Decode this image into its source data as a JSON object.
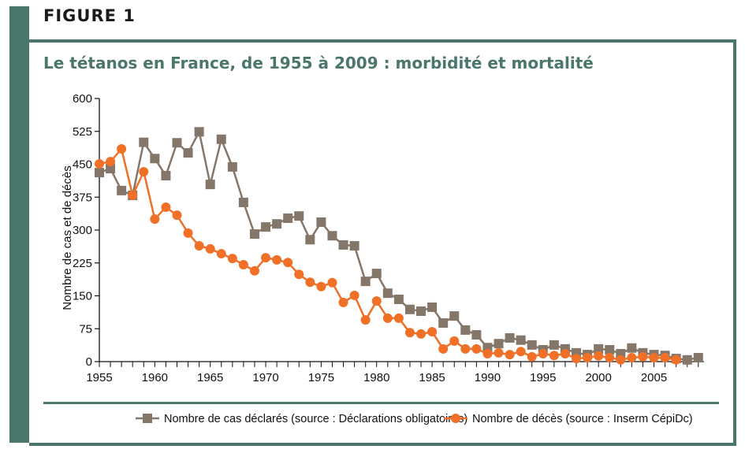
{
  "figure_label": "FIGURE 1",
  "chart_data": {
    "type": "line",
    "title": "Le tétanos en France, de 1955 à 2009 : morbidité et mortalité",
    "xlabel": "",
    "ylabel": "Nombre de cas et de décès",
    "xlim": [
      1955,
      2009
    ],
    "ylim": [
      0,
      600
    ],
    "xticks": [
      1955,
      1960,
      1965,
      1970,
      1975,
      1980,
      1985,
      1990,
      1995,
      2000,
      2005
    ],
    "yticks": [
      0,
      75,
      150,
      225,
      300,
      375,
      450,
      525,
      600
    ],
    "grid": false,
    "legend_position": "bottom",
    "series": [
      {
        "name": "Nombre de cas déclarés (source : Déclarations obligatoires)",
        "color": "#85766a",
        "marker": "square",
        "x": [
          1955,
          1956,
          1957,
          1958,
          1959,
          1960,
          1961,
          1962,
          1963,
          1964,
          1965,
          1966,
          1967,
          1968,
          1969,
          1970,
          1971,
          1972,
          1973,
          1974,
          1975,
          1976,
          1977,
          1978,
          1979,
          1980,
          1981,
          1982,
          1983,
          1984,
          1985,
          1986,
          1987,
          1988,
          1989,
          1990,
          1991,
          1992,
          1993,
          1994,
          1995,
          1996,
          1997,
          1998,
          1999,
          2000,
          2001,
          2002,
          2003,
          2004,
          2005,
          2006,
          2007,
          2008,
          2009
        ],
        "values": [
          431,
          440,
          390,
          379,
          500,
          463,
          424,
          499,
          476,
          524,
          404,
          507,
          444,
          363,
          291,
          307,
          314,
          327,
          332,
          278,
          318,
          287,
          266,
          264,
          183,
          201,
          156,
          142,
          119,
          115,
          124,
          88,
          104,
          72,
          61,
          32,
          41,
          54,
          49,
          38,
          27,
          38,
          29,
          20,
          16,
          29,
          27,
          18,
          31,
          20,
          16,
          14,
          7,
          4,
          9
        ]
      },
      {
        "name": "Nombre de décès (source : Inserm CépiDc)",
        "color": "#f07028",
        "marker": "circle",
        "x": [
          1955,
          1956,
          1957,
          1958,
          1959,
          1960,
          1961,
          1962,
          1963,
          1964,
          1965,
          1966,
          1967,
          1968,
          1969,
          1970,
          1971,
          1972,
          1973,
          1974,
          1975,
          1976,
          1977,
          1978,
          1979,
          1980,
          1981,
          1982,
          1983,
          1984,
          1985,
          1986,
          1987,
          1988,
          1989,
          1990,
          1991,
          1992,
          1993,
          1994,
          1995,
          1996,
          1997,
          1998,
          1999,
          2000,
          2001,
          2002,
          2003,
          2004,
          2005,
          2006,
          2007
        ],
        "values": [
          451,
          456,
          485,
          379,
          433,
          325,
          352,
          334,
          293,
          264,
          257,
          246,
          235,
          221,
          207,
          237,
          232,
          226,
          199,
          181,
          171,
          180,
          135,
          151,
          95,
          138,
          99,
          99,
          66,
          63,
          68,
          29,
          47,
          29,
          29,
          18,
          20,
          16,
          23,
          11,
          18,
          14,
          18,
          7,
          9,
          13,
          9,
          4,
          9,
          11,
          9,
          9,
          4
        ]
      }
    ]
  }
}
